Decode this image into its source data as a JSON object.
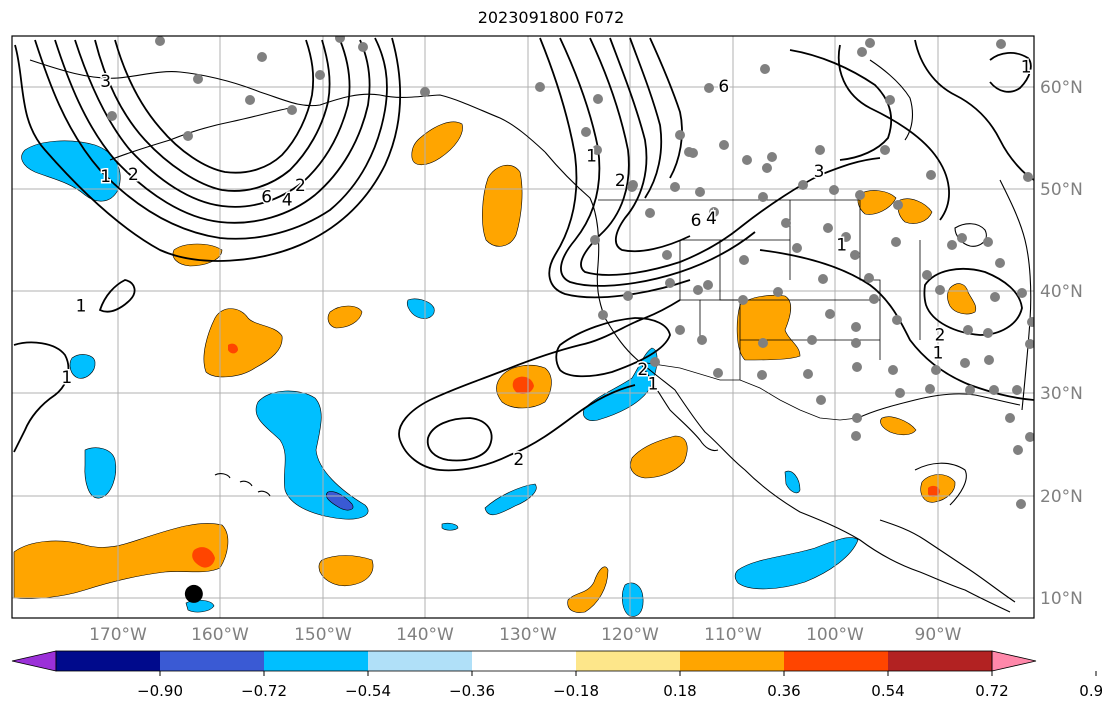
{
  "title": "2023091800 F072",
  "lon_ticks": [
    "170°W",
    "160°W",
    "150°W",
    "140°W",
    "130°W",
    "120°W",
    "110°W",
    "100°W",
    "90°W"
  ],
  "lat_ticks": [
    "60°N",
    "50°N",
    "40°N",
    "30°N",
    "20°N",
    "10°N"
  ],
  "colorbar": {
    "colors": [
      "#9b30d8",
      "#000a8c",
      "#3a5ad4",
      "#00bfff",
      "#b0e0f8",
      "#ffffff",
      "#fde68a",
      "#ffa500",
      "#ff4500",
      "#b22222",
      "#ff88aa"
    ],
    "labels": [
      "−0.90",
      "−0.72",
      "−0.54",
      "−0.36",
      "−0.18",
      "0.18",
      "0.36",
      "0.54",
      "0.72",
      "0.90"
    ]
  },
  "contour_labels": [
    {
      "text": "3",
      "lon": -171.2,
      "lat": 60.6
    },
    {
      "text": "2",
      "lon": -168.5,
      "lat": 51.5
    },
    {
      "text": "1",
      "lon": -171.2,
      "lat": 51.3
    },
    {
      "text": "6",
      "lon": -155.5,
      "lat": 49.3
    },
    {
      "text": "4",
      "lon": -153.5,
      "lat": 49.0
    },
    {
      "text": "2",
      "lon": -152.2,
      "lat": 50.4
    },
    {
      "text": "1",
      "lon": -173.6,
      "lat": 38.6
    },
    {
      "text": "1",
      "lon": -175.0,
      "lat": 31.6
    },
    {
      "text": "2",
      "lon": -130.9,
      "lat": 23.6
    },
    {
      "text": "2",
      "lon": -118.8,
      "lat": 32.4
    },
    {
      "text": "1",
      "lon": -117.8,
      "lat": 31.0
    },
    {
      "text": "2",
      "lon": -121.0,
      "lat": 50.9
    },
    {
      "text": "1",
      "lon": -123.8,
      "lat": 53.3
    },
    {
      "text": "6",
      "lon": -113.6,
      "lat": 47.0
    },
    {
      "text": "4",
      "lon": -112.1,
      "lat": 47.2
    },
    {
      "text": "3",
      "lon": -101.6,
      "lat": 51.8
    },
    {
      "text": "1",
      "lon": -99.4,
      "lat": 44.6
    },
    {
      "text": "6",
      "lon": -110.9,
      "lat": 60.1
    },
    {
      "text": "1",
      "lon": -81.4,
      "lat": 62.0
    },
    {
      "text": "2",
      "lon": -89.8,
      "lat": 35.8
    },
    {
      "text": "1",
      "lon": -90.0,
      "lat": 34.0
    }
  ],
  "markers": {
    "large_black_dot": {
      "lon": -162.6,
      "lat": 10.4
    }
  }
}
